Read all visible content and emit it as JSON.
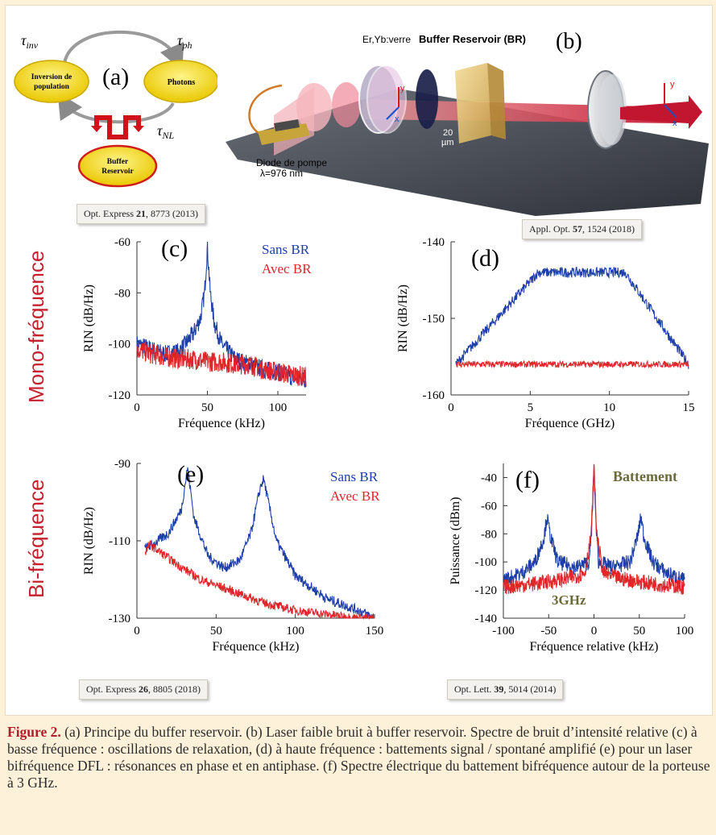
{
  "panel_a": {
    "letter": "(a)",
    "tau_inv": "τ",
    "tau_inv_sub": "inv",
    "tau_ph": "τ",
    "tau_ph_sub": "ph",
    "tau_nl": "τ",
    "tau_nl_sub": "NL",
    "node_inversion_line1": "Inversion de",
    "node_inversion_line2": "population",
    "node_photons": "Photons",
    "node_buffer_line1": "Buffer",
    "node_buffer_line2": "Reservoir"
  },
  "panel_b": {
    "letter": "(b)",
    "label_glass": "Er,Yb:verre",
    "label_br": "Buffer Reservoir (BR)",
    "label_pump_line1": "Diode de pompe",
    "label_pump_line2": "λ=976 nm",
    "label_thickness_line1": "20",
    "label_thickness_line2": "µm",
    "axis_x": "x",
    "axis_y": "y"
  },
  "refs": {
    "a": {
      "journal": "Opt. Express ",
      "vol": "21",
      "rest": ", 8773 (2013)"
    },
    "b": {
      "journal": "Appl. Opt. ",
      "vol": "57",
      "rest": ", 1524 (2018)"
    },
    "e": {
      "journal": "Opt. Express ",
      "vol": "26",
      "rest": ", 8805 (2018)"
    },
    "f": {
      "journal": "Opt. Lett. ",
      "vol": "39",
      "rest": ", 5014 (2014)"
    }
  },
  "side_labels": {
    "mono": "Mono-fréquence",
    "bi": "Bi-fréquence"
  },
  "chart_data": [
    {
      "id": "c",
      "type": "line",
      "letter": "(c)",
      "xlabel": "Fréquence (kHz)",
      "ylabel": "RIN (dB/Hz)",
      "xlim": [
        0,
        120
      ],
      "ylim": [
        -120,
        -60
      ],
      "xticks": [
        0,
        50,
        100
      ],
      "yticks": [
        -60,
        -80,
        -100,
        -120
      ],
      "series": [
        {
          "name": "Sans BR",
          "color": "#1f3fa8",
          "x": [
            0,
            10,
            20,
            30,
            40,
            45,
            48,
            50,
            52,
            55,
            60,
            70,
            80,
            90,
            100,
            110,
            120
          ],
          "y": [
            -100,
            -102,
            -104,
            -103,
            -96,
            -90,
            -80,
            -62,
            -80,
            -92,
            -100,
            -106,
            -108,
            -110,
            -111,
            -113,
            -114
          ]
        },
        {
          "name": "Avec BR",
          "color": "#e0262b",
          "x": [
            0,
            10,
            20,
            30,
            40,
            50,
            60,
            70,
            80,
            90,
            100,
            110,
            120
          ],
          "y": [
            -102,
            -104,
            -105,
            -106,
            -106,
            -107,
            -107,
            -108,
            -108,
            -110,
            -111,
            -112,
            -113
          ]
        }
      ],
      "legend": [
        "Sans BR",
        "Avec BR"
      ]
    },
    {
      "id": "d",
      "type": "line",
      "letter": "(d)",
      "xlabel": "Fréquence (GHz)",
      "ylabel": "RIN (dB/Hz)",
      "xlim": [
        0,
        15
      ],
      "ylim": [
        -160,
        -140
      ],
      "xticks": [
        0,
        5,
        10,
        15
      ],
      "yticks": [
        -140,
        -150,
        -160
      ],
      "series": [
        {
          "name": "Sans BR",
          "color": "#1f3fa8",
          "x": [
            0.3,
            5.5,
            11,
            15
          ],
          "y": [
            -156,
            -144,
            -144,
            -156
          ],
          "peaks": [
            {
              "x": 5.5,
              "y": -144
            },
            {
              "x": 11,
              "y": -144
            }
          ]
        },
        {
          "name": "Avec BR",
          "color": "#e0262b",
          "x": [
            0.3,
            15
          ],
          "y": [
            -156,
            -156
          ]
        }
      ]
    },
    {
      "id": "e",
      "type": "line",
      "letter": "(e)",
      "xlabel": "Fréquence (kHz)",
      "ylabel": "RIN (dB/Hz)",
      "xlim": [
        0,
        150
      ],
      "ylim": [
        -130,
        -90
      ],
      "xticks": [
        0,
        50,
        100,
        150
      ],
      "yticks": [
        -90,
        -110,
        -130
      ],
      "series": [
        {
          "name": "Sans BR",
          "color": "#1f3fa8",
          "x": [
            5,
            10,
            20,
            28,
            32,
            36,
            45,
            55,
            65,
            72,
            78,
            80,
            82,
            88,
            100,
            120,
            140,
            150
          ],
          "y": [
            -112,
            -111,
            -108,
            -102,
            -91,
            -104,
            -114,
            -117,
            -115,
            -108,
            -96,
            -94,
            -98,
            -110,
            -119,
            -125,
            -128,
            -130
          ],
          "peaks": [
            {
              "x": 32,
              "y": -91
            },
            {
              "x": 80,
              "y": -94
            }
          ]
        },
        {
          "name": "Avec BR",
          "color": "#e0262b",
          "x": [
            5,
            8,
            15,
            25,
            40,
            60,
            80,
            100,
            120,
            140,
            150
          ],
          "y": [
            -113,
            -111,
            -113,
            -116,
            -120,
            -123,
            -126,
            -128,
            -129,
            -130,
            -130
          ]
        }
      ],
      "legend": [
        "Sans BR",
        "Avec BR"
      ]
    },
    {
      "id": "f",
      "type": "line",
      "letter": "(f)",
      "xlabel": "Fréquence relative (kHz)",
      "ylabel": "Puissance (dBm)",
      "xlim": [
        -100,
        100
      ],
      "ylim": [
        -140,
        -30
      ],
      "xticks": [
        -100,
        -50,
        0,
        50,
        100
      ],
      "yticks": [
        -40,
        -60,
        -80,
        -100,
        -120,
        -140
      ],
      "series": [
        {
          "name": "blue",
          "color": "#1f3fa8",
          "x": [
            -100,
            -80,
            -65,
            -55,
            -52,
            -48,
            -40,
            -20,
            -5,
            -2,
            0,
            2,
            5,
            20,
            40,
            48,
            52,
            55,
            65,
            80,
            100
          ],
          "y": [
            -113,
            -108,
            -100,
            -82,
            -68,
            -82,
            -100,
            -104,
            -100,
            -70,
            -32,
            -70,
            -100,
            -104,
            -100,
            -82,
            -68,
            -82,
            -100,
            -108,
            -113
          ]
        },
        {
          "name": "red",
          "color": "#e0262b",
          "x": [
            -100,
            -60,
            -30,
            -10,
            -3,
            0,
            3,
            10,
            30,
            60,
            100
          ],
          "y": [
            -118,
            -115,
            -112,
            -108,
            -80,
            -32,
            -80,
            -108,
            -112,
            -115,
            -118
          ]
        }
      ],
      "annotations": [
        "Battement",
        "3GHz"
      ]
    }
  ],
  "caption": {
    "lead": "Figure 2.",
    "text": " (a) Principe du buffer reservoir. (b) Laser faible bruit à buffer reservoir. Spectre de bruit d’intensité relative (c) à basse fréquence : oscillations de relaxation, (d) à haute fréquence : battements signal / spontané amplifié (e) pour un laser bifréquence DFL : résonances en phase et en antiphase. (f) Spectre électrique du battement bifréquence autour de la porteuse à 3 GHz."
  }
}
